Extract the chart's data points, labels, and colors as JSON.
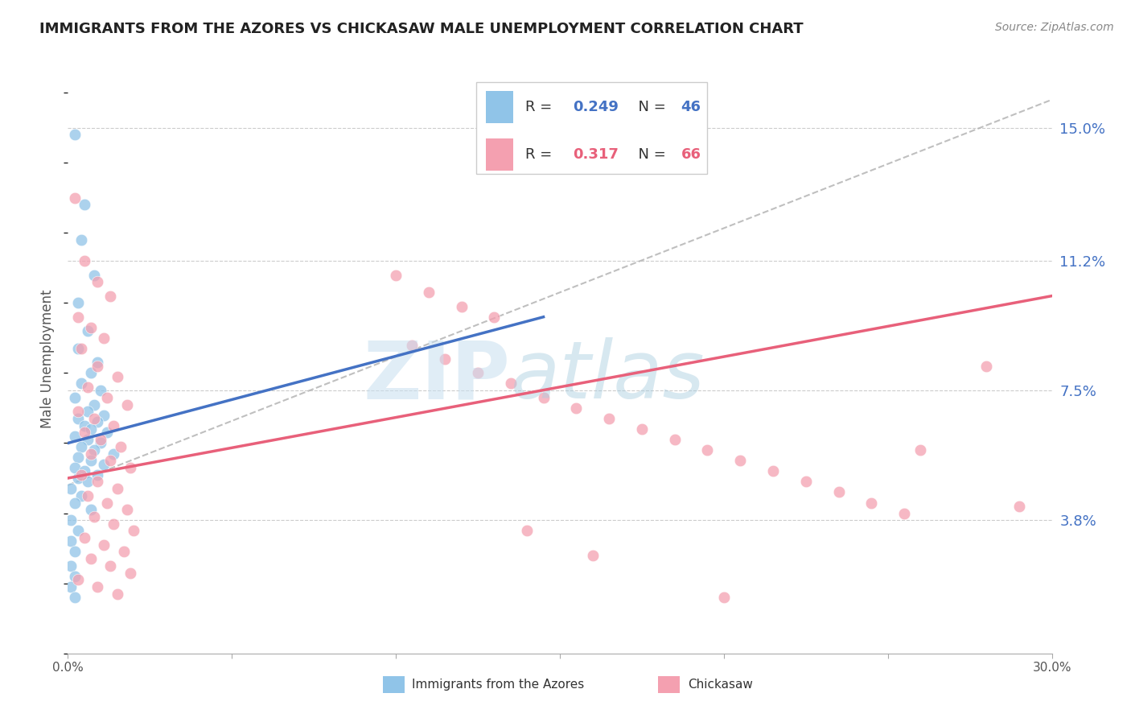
{
  "title": "IMMIGRANTS FROM THE AZORES VS CHICKASAW MALE UNEMPLOYMENT CORRELATION CHART",
  "source": "Source: ZipAtlas.com",
  "ylabel": "Male Unemployment",
  "xmin": 0.0,
  "xmax": 0.3,
  "ymin": 0.0,
  "ymax": 0.168,
  "yticks": [
    0.038,
    0.075,
    0.112,
    0.15
  ],
  "ytick_labels": [
    "3.8%",
    "7.5%",
    "11.2%",
    "15.0%"
  ],
  "xticks": [
    0.0,
    0.05,
    0.1,
    0.15,
    0.2,
    0.25,
    0.3
  ],
  "xtick_labels": [
    "0.0%",
    "",
    "",
    "",
    "",
    "",
    "30.0%"
  ],
  "color_blue": "#90c4e8",
  "color_pink": "#f4a0b0",
  "color_blue_line": "#4472c4",
  "color_pink_line": "#e8607a",
  "color_gray_dash": "#b0b0b0",
  "background_color": "#ffffff",
  "blue_points": [
    [
      0.002,
      0.148
    ],
    [
      0.005,
      0.128
    ],
    [
      0.004,
      0.118
    ],
    [
      0.008,
      0.108
    ],
    [
      0.003,
      0.1
    ],
    [
      0.006,
      0.092
    ],
    [
      0.003,
      0.087
    ],
    [
      0.009,
      0.083
    ],
    [
      0.007,
      0.08
    ],
    [
      0.004,
      0.077
    ],
    [
      0.01,
      0.075
    ],
    [
      0.002,
      0.073
    ],
    [
      0.008,
      0.071
    ],
    [
      0.006,
      0.069
    ],
    [
      0.011,
      0.068
    ],
    [
      0.003,
      0.067
    ],
    [
      0.009,
      0.066
    ],
    [
      0.005,
      0.065
    ],
    [
      0.007,
      0.064
    ],
    [
      0.012,
      0.063
    ],
    [
      0.002,
      0.062
    ],
    [
      0.006,
      0.061
    ],
    [
      0.01,
      0.06
    ],
    [
      0.004,
      0.059
    ],
    [
      0.008,
      0.058
    ],
    [
      0.014,
      0.057
    ],
    [
      0.003,
      0.056
    ],
    [
      0.007,
      0.055
    ],
    [
      0.011,
      0.054
    ],
    [
      0.002,
      0.053
    ],
    [
      0.005,
      0.052
    ],
    [
      0.009,
      0.051
    ],
    [
      0.003,
      0.05
    ],
    [
      0.006,
      0.049
    ],
    [
      0.001,
      0.047
    ],
    [
      0.004,
      0.045
    ],
    [
      0.002,
      0.043
    ],
    [
      0.007,
      0.041
    ],
    [
      0.001,
      0.038
    ],
    [
      0.003,
      0.035
    ],
    [
      0.001,
      0.032
    ],
    [
      0.002,
      0.029
    ],
    [
      0.001,
      0.025
    ],
    [
      0.002,
      0.022
    ],
    [
      0.001,
      0.019
    ],
    [
      0.002,
      0.016
    ]
  ],
  "pink_points": [
    [
      0.002,
      0.13
    ],
    [
      0.005,
      0.112
    ],
    [
      0.009,
      0.106
    ],
    [
      0.013,
      0.102
    ],
    [
      0.003,
      0.096
    ],
    [
      0.007,
      0.093
    ],
    [
      0.011,
      0.09
    ],
    [
      0.004,
      0.087
    ],
    [
      0.009,
      0.082
    ],
    [
      0.015,
      0.079
    ],
    [
      0.006,
      0.076
    ],
    [
      0.012,
      0.073
    ],
    [
      0.018,
      0.071
    ],
    [
      0.003,
      0.069
    ],
    [
      0.008,
      0.067
    ],
    [
      0.014,
      0.065
    ],
    [
      0.005,
      0.063
    ],
    [
      0.01,
      0.061
    ],
    [
      0.016,
      0.059
    ],
    [
      0.007,
      0.057
    ],
    [
      0.013,
      0.055
    ],
    [
      0.019,
      0.053
    ],
    [
      0.004,
      0.051
    ],
    [
      0.009,
      0.049
    ],
    [
      0.015,
      0.047
    ],
    [
      0.006,
      0.045
    ],
    [
      0.012,
      0.043
    ],
    [
      0.018,
      0.041
    ],
    [
      0.008,
      0.039
    ],
    [
      0.014,
      0.037
    ],
    [
      0.02,
      0.035
    ],
    [
      0.005,
      0.033
    ],
    [
      0.011,
      0.031
    ],
    [
      0.017,
      0.029
    ],
    [
      0.007,
      0.027
    ],
    [
      0.013,
      0.025
    ],
    [
      0.019,
      0.023
    ],
    [
      0.003,
      0.021
    ],
    [
      0.009,
      0.019
    ],
    [
      0.015,
      0.017
    ],
    [
      0.1,
      0.108
    ],
    [
      0.11,
      0.103
    ],
    [
      0.12,
      0.099
    ],
    [
      0.13,
      0.096
    ],
    [
      0.105,
      0.088
    ],
    [
      0.115,
      0.084
    ],
    [
      0.125,
      0.08
    ],
    [
      0.135,
      0.077
    ],
    [
      0.145,
      0.073
    ],
    [
      0.155,
      0.07
    ],
    [
      0.165,
      0.067
    ],
    [
      0.175,
      0.064
    ],
    [
      0.185,
      0.061
    ],
    [
      0.195,
      0.058
    ],
    [
      0.205,
      0.055
    ],
    [
      0.215,
      0.052
    ],
    [
      0.225,
      0.049
    ],
    [
      0.235,
      0.046
    ],
    [
      0.245,
      0.043
    ],
    [
      0.255,
      0.04
    ],
    [
      0.14,
      0.035
    ],
    [
      0.16,
      0.028
    ],
    [
      0.2,
      0.016
    ],
    [
      0.28,
      0.082
    ],
    [
      0.26,
      0.058
    ],
    [
      0.29,
      0.042
    ]
  ]
}
